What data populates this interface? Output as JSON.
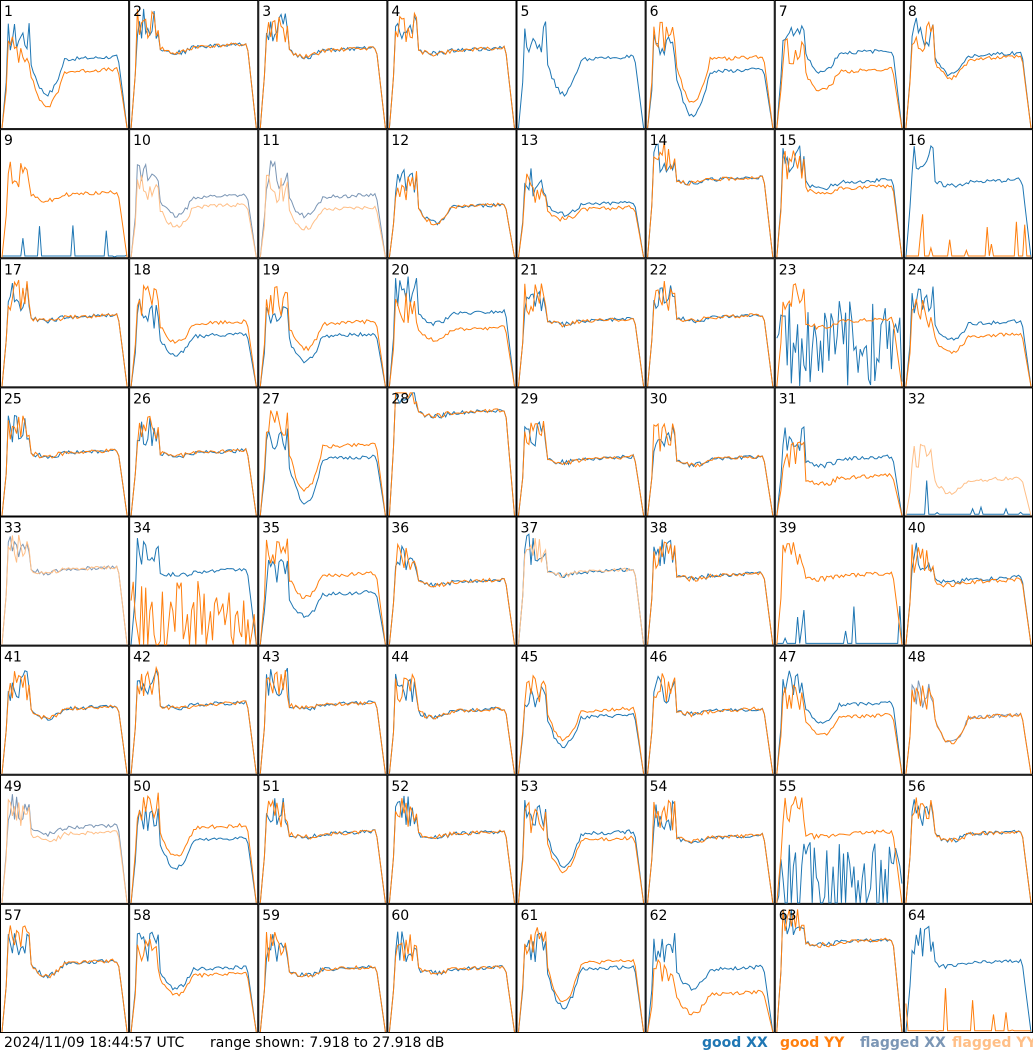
{
  "footer": {
    "timestamp": "2024/11/09 18:44:57 UTC",
    "range_text": "range shown: 7.918 to 27.918 dB"
  },
  "legend": {
    "good_xx": "good XX",
    "good_yy": "good YY",
    "flagged_xx": "flagged XX",
    "flagged_yy": "flagged YY"
  },
  "colors": {
    "good_xx": "#1f77b4",
    "good_yy": "#ff7f0e",
    "flagged_xx": "#7b96b5",
    "flagged_yy": "#ffbf87",
    "frame": "#000000"
  },
  "chart_data": {
    "type": "line",
    "grid_rows": 8,
    "grid_cols": 8,
    "ylim_db": [
      7.918,
      27.918
    ],
    "panels": [
      {
        "id": "1",
        "xx": "good",
        "yy": "good",
        "xx_level": 0.55,
        "yy_level": 0.45,
        "dip": 0.55
      },
      {
        "id": "2",
        "xx": "good",
        "yy": "good",
        "xx_level": 0.65,
        "yy_level": 0.65,
        "dip": 0.1
      },
      {
        "id": "3",
        "xx": "good",
        "yy": "good",
        "xx_level": 0.62,
        "yy_level": 0.62,
        "dip": 0.1
      },
      {
        "id": "4",
        "xx": "good",
        "yy": "good",
        "xx_level": 0.62,
        "yy_level": 0.62,
        "dip": 0.05
      },
      {
        "id": "5",
        "xx": "good",
        "yy": "none",
        "xx_level": 0.55,
        "yy_level": 0,
        "dip": 0.55
      },
      {
        "id": "6",
        "xx": "good",
        "yy": "good",
        "xx_level": 0.45,
        "yy_level": 0.55,
        "dip": 0.7
      },
      {
        "id": "7",
        "xx": "good",
        "yy": "good",
        "xx_level": 0.6,
        "yy_level": 0.45,
        "dip": 0.3
      },
      {
        "id": "8",
        "xx": "good",
        "yy": "good",
        "xx_level": 0.58,
        "yy_level": 0.55,
        "dip": 0.3
      },
      {
        "id": "9",
        "xx": "sparse",
        "yy": "good",
        "xx_level": 0.05,
        "yy_level": 0.5,
        "dip": 0.1
      },
      {
        "id": "10",
        "xx": "flagged",
        "yy": "flagged",
        "xx_level": 0.48,
        "yy_level": 0.4,
        "dip": 0.3
      },
      {
        "id": "11",
        "xx": "flagged",
        "yy": "flagged",
        "xx_level": 0.48,
        "yy_level": 0.38,
        "dip": 0.3
      },
      {
        "id": "12",
        "xx": "good",
        "yy": "good",
        "xx_level": 0.4,
        "yy_level": 0.4,
        "dip": 0.25
      },
      {
        "id": "13",
        "xx": "good",
        "yy": "good",
        "xx_level": 0.42,
        "yy_level": 0.38,
        "dip": 0.15
      },
      {
        "id": "14",
        "xx": "good",
        "yy": "good",
        "xx_level": 0.62,
        "yy_level": 0.62,
        "dip": 0.05
      },
      {
        "id": "15",
        "xx": "good",
        "yy": "good",
        "xx_level": 0.6,
        "yy_level": 0.55,
        "dip": 0.1
      },
      {
        "id": "16",
        "xx": "good",
        "yy": "sparse",
        "xx_level": 0.6,
        "yy_level": 0.05,
        "dip": 0.05
      },
      {
        "id": "17",
        "xx": "good",
        "yy": "good",
        "xx_level": 0.55,
        "yy_level": 0.55,
        "dip": 0.05
      },
      {
        "id": "18",
        "xx": "good",
        "yy": "good",
        "xx_level": 0.4,
        "yy_level": 0.5,
        "dip": 0.3
      },
      {
        "id": "19",
        "xx": "good",
        "yy": "good",
        "xx_level": 0.4,
        "yy_level": 0.5,
        "dip": 0.4
      },
      {
        "id": "20",
        "xx": "good",
        "yy": "good",
        "xx_level": 0.58,
        "yy_level": 0.45,
        "dip": 0.15
      },
      {
        "id": "21",
        "xx": "good",
        "yy": "good",
        "xx_level": 0.52,
        "yy_level": 0.52,
        "dip": 0.05
      },
      {
        "id": "22",
        "xx": "good",
        "yy": "good",
        "xx_level": 0.55,
        "yy_level": 0.55,
        "dip": 0.05
      },
      {
        "id": "23",
        "xx": "noisy",
        "yy": "good",
        "xx_level": 0.35,
        "yy_level": 0.52,
        "dip": 0.1
      },
      {
        "id": "24",
        "xx": "good",
        "yy": "good",
        "xx_level": 0.5,
        "yy_level": 0.4,
        "dip": 0.25
      },
      {
        "id": "25",
        "xx": "good",
        "yy": "good",
        "xx_level": 0.5,
        "yy_level": 0.5,
        "dip": 0.05
      },
      {
        "id": "26",
        "xx": "good",
        "yy": "good",
        "xx_level": 0.5,
        "yy_level": 0.5,
        "dip": 0.05
      },
      {
        "id": "27",
        "xx": "good",
        "yy": "good",
        "xx_level": 0.45,
        "yy_level": 0.55,
        "dip": 0.7
      },
      {
        "id": "28",
        "xx": "good",
        "yy": "good",
        "xx_level": 0.82,
        "yy_level": 0.82,
        "dip": 0.05
      },
      {
        "id": "29",
        "xx": "good",
        "yy": "good",
        "xx_level": 0.45,
        "yy_level": 0.45,
        "dip": 0.05
      },
      {
        "id": "30",
        "xx": "good",
        "yy": "good",
        "xx_level": 0.45,
        "yy_level": 0.45,
        "dip": 0.1
      },
      {
        "id": "31",
        "xx": "good",
        "yy": "good",
        "xx_level": 0.45,
        "yy_level": 0.3,
        "dip": 0.1
      },
      {
        "id": "32",
        "xx": "sparse",
        "yy": "flagged",
        "xx_level": 0.05,
        "yy_level": 0.28,
        "dip": 0.2
      },
      {
        "id": "33",
        "xx": "flagged",
        "yy": "flagged",
        "xx_level": 0.6,
        "yy_level": 0.6,
        "dip": 0.05
      },
      {
        "id": "34",
        "xx": "good",
        "yy": "noisy",
        "xx_level": 0.58,
        "yy_level": 0.2,
        "dip": 0.05
      },
      {
        "id": "35",
        "xx": "good",
        "yy": "good",
        "xx_level": 0.4,
        "yy_level": 0.55,
        "dip": 0.35
      },
      {
        "id": "36",
        "xx": "good",
        "yy": "good",
        "xx_level": 0.5,
        "yy_level": 0.5,
        "dip": 0.05
      },
      {
        "id": "37",
        "xx": "good",
        "yy": "flagged",
        "xx_level": 0.58,
        "yy_level": 0.58,
        "dip": 0.05
      },
      {
        "id": "38",
        "xx": "good",
        "yy": "good",
        "xx_level": 0.55,
        "yy_level": 0.55,
        "dip": 0.05
      },
      {
        "id": "39",
        "xx": "sparse",
        "yy": "good",
        "xx_level": 0.05,
        "yy_level": 0.55,
        "dip": 0.05
      },
      {
        "id": "40",
        "xx": "good",
        "yy": "good",
        "xx_level": 0.52,
        "yy_level": 0.5,
        "dip": 0.05
      },
      {
        "id": "41",
        "xx": "good",
        "yy": "good",
        "xx_level": 0.52,
        "yy_level": 0.52,
        "dip": 0.15
      },
      {
        "id": "42",
        "xx": "good",
        "yy": "good",
        "xx_level": 0.55,
        "yy_level": 0.55,
        "dip": 0.05
      },
      {
        "id": "43",
        "xx": "good",
        "yy": "good",
        "xx_level": 0.55,
        "yy_level": 0.55,
        "dip": 0.05
      },
      {
        "id": "44",
        "xx": "good",
        "yy": "good",
        "xx_level": 0.5,
        "yy_level": 0.5,
        "dip": 0.1
      },
      {
        "id": "45",
        "xx": "good",
        "yy": "good",
        "xx_level": 0.45,
        "yy_level": 0.5,
        "dip": 0.45
      },
      {
        "id": "46",
        "xx": "good",
        "yy": "good",
        "xx_level": 0.5,
        "yy_level": 0.5,
        "dip": 0.05
      },
      {
        "id": "47",
        "xx": "good",
        "yy": "good",
        "xx_level": 0.55,
        "yy_level": 0.45,
        "dip": 0.3
      },
      {
        "id": "48",
        "xx": "flagged",
        "yy": "good",
        "xx_level": 0.45,
        "yy_level": 0.45,
        "dip": 0.4
      },
      {
        "id": "49",
        "xx": "flagged",
        "yy": "flagged",
        "xx_level": 0.6,
        "yy_level": 0.55,
        "dip": 0.1
      },
      {
        "id": "50",
        "xx": "good",
        "yy": "good",
        "xx_level": 0.5,
        "yy_level": 0.6,
        "dip": 0.45
      },
      {
        "id": "51",
        "xx": "good",
        "yy": "good",
        "xx_level": 0.55,
        "yy_level": 0.55,
        "dip": 0.05
      },
      {
        "id": "52",
        "xx": "good",
        "yy": "good",
        "xx_level": 0.55,
        "yy_level": 0.55,
        "dip": 0.05
      },
      {
        "id": "53",
        "xx": "good",
        "yy": "good",
        "xx_level": 0.55,
        "yy_level": 0.5,
        "dip": 0.5
      },
      {
        "id": "54",
        "xx": "good",
        "yy": "good",
        "xx_level": 0.52,
        "yy_level": 0.52,
        "dip": 0.05
      },
      {
        "id": "55",
        "xx": "noisy",
        "yy": "good",
        "xx_level": 0.15,
        "yy_level": 0.55,
        "dip": 0.05
      },
      {
        "id": "56",
        "xx": "good",
        "yy": "good",
        "xx_level": 0.55,
        "yy_level": 0.55,
        "dip": 0.1
      },
      {
        "id": "57",
        "xx": "good",
        "yy": "good",
        "xx_level": 0.55,
        "yy_level": 0.55,
        "dip": 0.2
      },
      {
        "id": "58",
        "xx": "good",
        "yy": "good",
        "xx_level": 0.5,
        "yy_level": 0.45,
        "dip": 0.3
      },
      {
        "id": "59",
        "xx": "good",
        "yy": "good",
        "xx_level": 0.5,
        "yy_level": 0.5,
        "dip": 0.1
      },
      {
        "id": "60",
        "xx": "good",
        "yy": "good",
        "xx_level": 0.5,
        "yy_level": 0.5,
        "dip": 0.05
      },
      {
        "id": "61",
        "xx": "good",
        "yy": "good",
        "xx_level": 0.5,
        "yy_level": 0.55,
        "dip": 0.6
      },
      {
        "id": "62",
        "xx": "good",
        "yy": "good",
        "xx_level": 0.5,
        "yy_level": 0.3,
        "dip": 0.3
      },
      {
        "id": "63",
        "xx": "good",
        "yy": "good",
        "xx_level": 0.72,
        "yy_level": 0.72,
        "dip": 0.05
      },
      {
        "id": "64",
        "xx": "good",
        "yy": "sparse",
        "xx_level": 0.55,
        "yy_level": 0.05,
        "dip": 0.05
      }
    ]
  }
}
